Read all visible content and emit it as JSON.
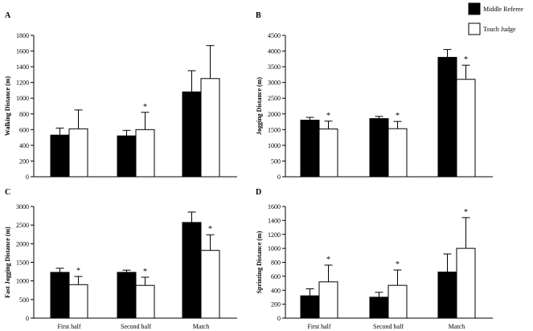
{
  "legend": {
    "entries": [
      {
        "name": "Middle Referee",
        "color": "#000000"
      },
      {
        "name": "Touch Judge",
        "color": "#ffffff"
      }
    ],
    "placement": "top-right"
  },
  "chart_data": [
    {
      "type": "bar",
      "panel_label": "A",
      "ylabel": "Walking Distance (m)",
      "ylim": [
        0,
        1800
      ],
      "yticks": [
        0,
        200,
        400,
        600,
        800,
        1000,
        1200,
        1400,
        1600,
        1800
      ],
      "categories": [
        "First half",
        "Second half",
        "Match"
      ],
      "show_categories": false,
      "series": [
        {
          "name": "Middle Referee",
          "values": [
            530,
            520,
            1080
          ],
          "errors": [
            90,
            70,
            270
          ]
        },
        {
          "name": "Touch Judge",
          "values": [
            610,
            600,
            1250
          ],
          "errors": [
            240,
            220,
            420
          ]
        }
      ],
      "significance": [
        false,
        true,
        false
      ]
    },
    {
      "type": "bar",
      "panel_label": "B",
      "ylabel": "Jogging Distance (m)",
      "ylim": [
        0,
        4500
      ],
      "yticks": [
        0,
        500,
        1000,
        1500,
        2000,
        2500,
        3000,
        3500,
        4000,
        4500
      ],
      "categories": [
        "First half",
        "Second half",
        "Match"
      ],
      "show_categories": false,
      "series": [
        {
          "name": "Middle Referee",
          "values": [
            1800,
            1850,
            3800
          ],
          "errors": [
            90,
            70,
            250
          ]
        },
        {
          "name": "Touch Judge",
          "values": [
            1520,
            1530,
            3100
          ],
          "errors": [
            250,
            230,
            450
          ]
        }
      ],
      "significance": [
        true,
        true,
        true
      ]
    },
    {
      "type": "bar",
      "panel_label": "C",
      "ylabel": "Fast Jogging Distance (m)",
      "ylim": [
        0,
        3000
      ],
      "yticks": [
        0,
        500,
        1000,
        1500,
        2000,
        2500,
        3000
      ],
      "categories": [
        "First half",
        "Second half",
        "Match"
      ],
      "show_categories": true,
      "series": [
        {
          "name": "Middle Referee",
          "values": [
            1230,
            1230,
            2570
          ],
          "errors": [
            110,
            60,
            280
          ]
        },
        {
          "name": "Touch Judge",
          "values": [
            900,
            880,
            1820
          ],
          "errors": [
            220,
            220,
            420
          ]
        }
      ],
      "significance": [
        true,
        true,
        true
      ]
    },
    {
      "type": "bar",
      "panel_label": "D",
      "ylabel": "Sprinting Distance (m)",
      "ylim": [
        0,
        1600
      ],
      "yticks": [
        0,
        200,
        400,
        600,
        800,
        1000,
        1200,
        1400,
        1600
      ],
      "categories": [
        "First half",
        "Second half",
        "Match"
      ],
      "show_categories": true,
      "series": [
        {
          "name": "Middle Referee",
          "values": [
            320,
            300,
            660
          ],
          "errors": [
            100,
            70,
            260
          ]
        },
        {
          "name": "Touch Judge",
          "values": [
            520,
            470,
            1000
          ],
          "errors": [
            240,
            220,
            440
          ]
        }
      ],
      "significance": [
        true,
        true,
        true
      ]
    }
  ]
}
